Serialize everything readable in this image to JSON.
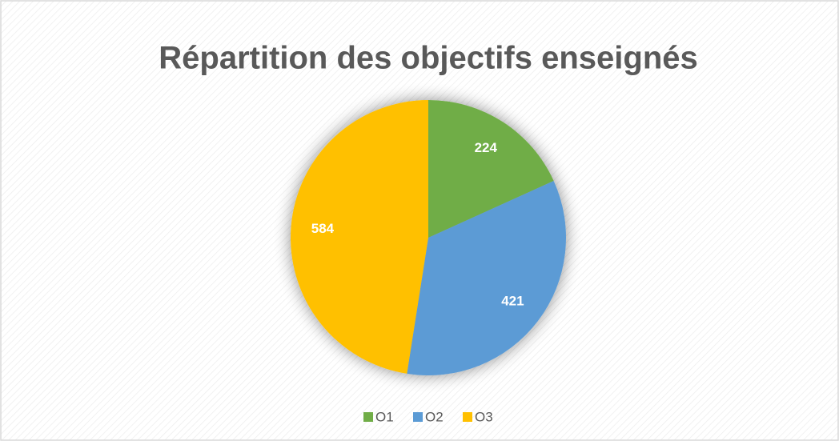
{
  "chart_data": {
    "type": "pie",
    "title": "Répartition des objectifs enseignés",
    "categories": [
      "O1",
      "O2",
      "O3"
    ],
    "values": [
      224,
      421,
      584
    ],
    "colors": [
      "#70ad47",
      "#5b9bd5",
      "#ffc000"
    ],
    "legend": "bottom"
  }
}
